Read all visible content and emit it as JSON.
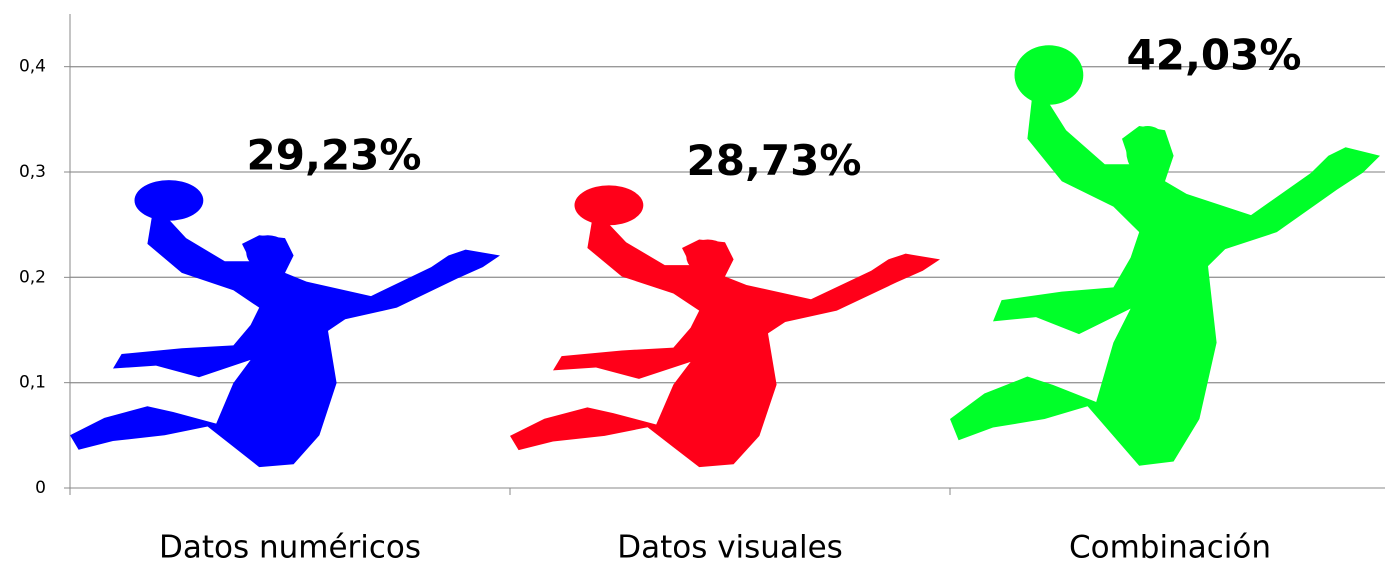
{
  "chart_data": {
    "type": "pictograph",
    "categories": [
      "Datos numéricos",
      "Datos visuales",
      "Combinación"
    ],
    "values": [
      0.2923,
      0.2873,
      0.4203
    ],
    "value_labels": [
      "29,23%",
      "28,73%",
      "42,03%"
    ],
    "colors": [
      "#0000ff",
      "#ff0019",
      "#00ff29"
    ],
    "ylim": [
      0,
      0.45
    ],
    "yticks": [
      0,
      {
        "value": 0.1,
        "label": "0,1"
      },
      {
        "value": 0.2,
        "label": "0,2"
      },
      {
        "value": 0.3,
        "label": "0,3"
      },
      {
        "value": 0.4,
        "label": "0,4"
      }
    ],
    "grid": true
  }
}
